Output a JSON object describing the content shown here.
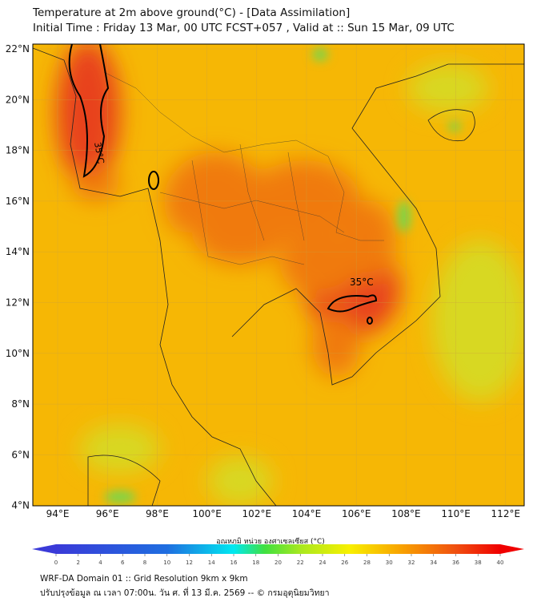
{
  "header": {
    "title": "Temperature at 2m above ground(°C) - [Data Assimilation]",
    "subtitle": "Initial Time : Friday 13 Mar, 00 UTC FCST+057 , Valid at :: Sun 15 Mar, 09 UTC"
  },
  "map": {
    "lat_labels": [
      "22°N",
      "20°N",
      "18°N",
      "16°N",
      "14°N",
      "12°N",
      "10°N",
      "8°N",
      "6°N",
      "4°N"
    ],
    "lon_labels": [
      "94°E",
      "96°E",
      "98°E",
      "100°E",
      "102°E",
      "104°E",
      "106°E",
      "108°E",
      "110°E",
      "112°E"
    ],
    "contour_labels": [
      "35°C",
      "35°C"
    ],
    "colors": {
      "base": "#f6b705",
      "warm": "#f07a0a",
      "hot": "#e8431a",
      "cool": "#d8d820",
      "green": "#7ad64a"
    }
  },
  "colorbar": {
    "title": "อุณหภูมิ หน่วย องศาเซลเซียส (°C)",
    "ticks": [
      "0",
      "2",
      "4",
      "6",
      "8",
      "10",
      "12",
      "14",
      "16",
      "18",
      "20",
      "22",
      "24",
      "26",
      "28",
      "30",
      "32",
      "34",
      "36",
      "38",
      "40"
    ],
    "range": [
      0,
      40
    ]
  },
  "footer": {
    "line1": "WRF-DA Domain 01 :: Grid Resolution 9km x 9km",
    "line2": "ปรับปรุงข้อมูล ณ เวลา 07:00น. วัน ศ. ที่ 13 มี.ค. 2569 -- © กรมอุตุนิยมวิทยา"
  }
}
